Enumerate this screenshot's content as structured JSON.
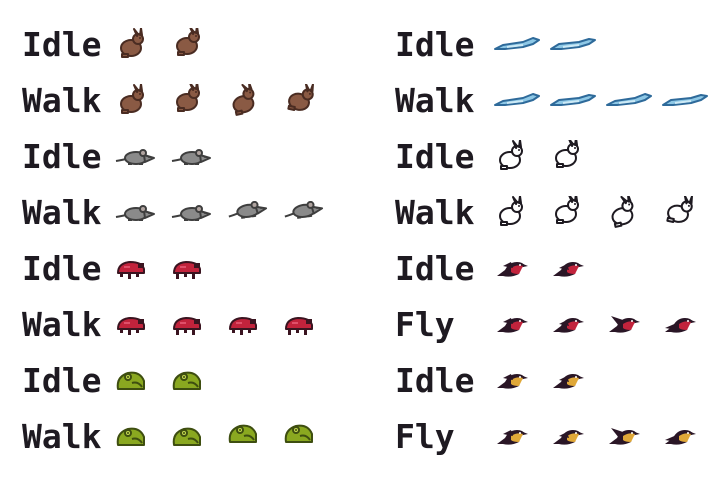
{
  "left_column": [
    {
      "label": "Idle",
      "creature": "rabbit",
      "frames": 2,
      "color": "#8a5a44",
      "outline": "#4a2c22"
    },
    {
      "label": "Walk",
      "creature": "rabbit",
      "frames": 4,
      "color": "#8a5a44",
      "outline": "#4a2c22"
    },
    {
      "label": "Idle",
      "creature": "rat",
      "frames": 2,
      "color": "#8a8a8a",
      "outline": "#3e3e3e"
    },
    {
      "label": "Walk",
      "creature": "rat",
      "frames": 4,
      "color": "#8a8a8a",
      "outline": "#3e3e3e"
    },
    {
      "label": "Idle",
      "creature": "beetle",
      "frames": 2,
      "color": "#c2233c",
      "outline": "#3a1420"
    },
    {
      "label": "Walk",
      "creature": "beetle",
      "frames": 4,
      "color": "#c2233c",
      "outline": "#3a1420"
    },
    {
      "label": "Idle",
      "creature": "frog",
      "frames": 2,
      "color": "#8aa820",
      "outline": "#3e4e10"
    },
    {
      "label": "Walk",
      "creature": "frog",
      "frames": 4,
      "color": "#8aa820",
      "outline": "#3e4e10"
    }
  ],
  "right_column": [
    {
      "label": "Idle",
      "creature": "fish",
      "frames": 2,
      "color": "#8ec8e6",
      "outline": "#2e6a9a"
    },
    {
      "label": "Walk",
      "creature": "fish",
      "frames": 4,
      "color": "#8ec8e6",
      "outline": "#2e6a9a"
    },
    {
      "label": "Idle",
      "creature": "ghost-rabbit",
      "frames": 2,
      "color": "#ffffff",
      "outline": "#1e1a21"
    },
    {
      "label": "Walk",
      "creature": "ghost-rabbit",
      "frames": 4,
      "color": "#ffffff",
      "outline": "#1e1a21"
    },
    {
      "label": "Idle",
      "creature": "red-bird",
      "frames": 2,
      "color": "#c2233c",
      "outline": "#2a1626"
    },
    {
      "label": "Fly",
      "creature": "red-bird",
      "frames": 4,
      "color": "#c2233c",
      "outline": "#2a1626"
    },
    {
      "label": "Idle",
      "creature": "yellow-bird",
      "frames": 2,
      "color": "#e0a838",
      "outline": "#2a1626"
    },
    {
      "label": "Fly",
      "creature": "yellow-bird",
      "frames": 4,
      "color": "#e0a838",
      "outline": "#2a1626"
    }
  ]
}
